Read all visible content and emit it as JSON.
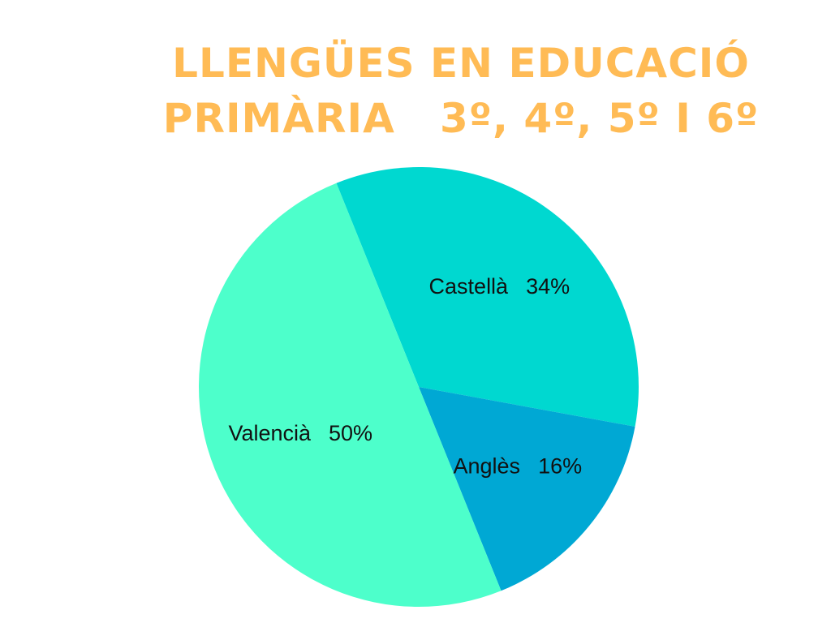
{
  "chart_data": {
    "type": "pie",
    "title": [
      "LLENGÜES EN EDUCACIÓ",
      "PRIMÀRIA   3º, 4º, 5º I 6º"
    ],
    "categories": [
      "Castellà",
      "Anglès",
      "Valencià"
    ],
    "values": [
      34,
      16,
      50
    ],
    "value_labels": [
      "34%",
      "16%",
      "50%"
    ],
    "colors": [
      "#00d8d0",
      "#00a8d4",
      "#4dffcb"
    ]
  }
}
